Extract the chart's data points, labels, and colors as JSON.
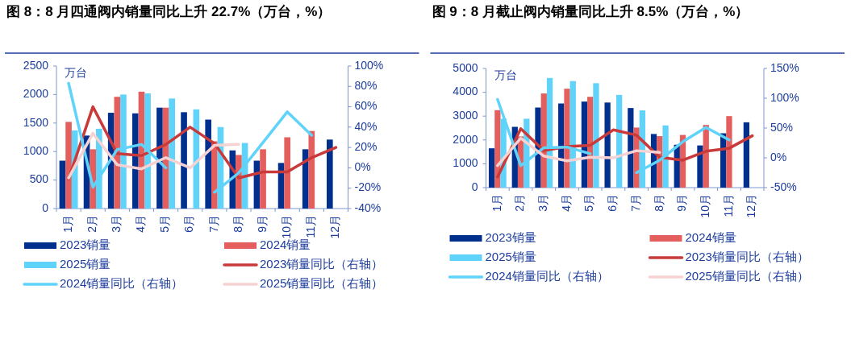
{
  "chart_data": [
    {
      "type": "bar",
      "title": "图 8：8 月四通阀内销量同比上升 22.7%（万台，%）",
      "ylabel": "万台",
      "categories": [
        "1月",
        "2月",
        "3月",
        "4月",
        "5月",
        "6月",
        "7月",
        "8月",
        "9月",
        "10月",
        "11月",
        "12月"
      ],
      "series": [
        {
          "name": "2023销量",
          "color": "#002f8e",
          "values": [
            840,
            1280,
            1680,
            1670,
            1770,
            1690,
            1560,
            1020,
            840,
            800,
            1040,
            1210
          ]
        },
        {
          "name": "2024销量",
          "color": "#e55e5e",
          "values": [
            1520,
            1040,
            1960,
            2050,
            1770,
            null,
            1180,
            940,
            1040,
            1250,
            1360,
            null
          ]
        },
        {
          "name": "2025销量",
          "color": "#5fd3fa",
          "values": [
            1370,
            1400,
            2000,
            2020,
            1930,
            1740,
            1430,
            1150,
            null,
            null,
            null,
            null
          ]
        },
        {
          "name": "2023销量同比（右轴）",
          "type": "line",
          "axis": "y2",
          "color": "#c93a3a",
          "values": [
            -11,
            60,
            14,
            12,
            23,
            40,
            24,
            -10,
            -4,
            -4,
            10,
            20
          ]
        },
        {
          "name": "2024销量同比（右轴）",
          "type": "line",
          "axis": "y2",
          "color": "#5fd3fa",
          "values": [
            83,
            -19,
            18,
            23,
            0,
            null,
            -24,
            -5,
            25,
            55,
            32,
            null
          ]
        },
        {
          "name": "2025销量同比（右轴）",
          "type": "line",
          "axis": "y2",
          "color": "#f6d2d2",
          "values": [
            -10,
            34,
            3,
            -1,
            10,
            0,
            22,
            23,
            null,
            null,
            null,
            null
          ]
        }
      ],
      "ylim": [
        0,
        2500
      ],
      "yticks": [
        0,
        500,
        1000,
        1500,
        2000,
        2500
      ],
      "y2lim": [
        -40,
        100
      ],
      "y2ticks": [
        {
          "value": -40,
          "label": "-40%"
        },
        {
          "value": -20,
          "label": "-20%"
        },
        {
          "value": 0,
          "label": "0%"
        },
        {
          "value": 20,
          "label": "20%"
        },
        {
          "value": 40,
          "label": "40%"
        },
        {
          "value": 60,
          "label": "60%"
        },
        {
          "value": 80,
          "label": "80%"
        },
        {
          "value": 100,
          "label": "100%"
        }
      ],
      "legend": "bottom",
      "marker": "none",
      "grid": false
    },
    {
      "type": "bar",
      "title": "图 9：8 月截止阀内销量同比上升 8.5%（万台，%）",
      "ylabel": "万台",
      "categories": [
        "1月",
        "2月",
        "3月",
        "4月",
        "5月",
        "6月",
        "7月",
        "8月",
        "9月",
        "10月",
        "11月",
        "12月"
      ],
      "series": [
        {
          "name": "2023销量",
          "color": "#002f8e",
          "values": [
            1650,
            2550,
            3360,
            3530,
            3610,
            3570,
            3340,
            2250,
            1800,
            1770,
            2280,
            2740
          ]
        },
        {
          "name": "2024销量",
          "color": "#e55e5e",
          "values": [
            3250,
            2150,
            3950,
            4150,
            3810,
            null,
            2520,
            2160,
            2210,
            2630,
            3000,
            null
          ]
        },
        {
          "name": "2025销量",
          "color": "#5fd3fa",
          "values": [
            2890,
            2890,
            4600,
            4470,
            4380,
            3890,
            3240,
            2610,
            null,
            null,
            null,
            null
          ]
        },
        {
          "name": "2023销量同比（右轴）",
          "type": "line",
          "axis": "y2",
          "color": "#c93a3a",
          "values": [
            -32,
            49,
            12,
            19,
            21,
            47,
            38,
            1,
            -4,
            11,
            16,
            37
          ]
        },
        {
          "name": "2024销量同比（右轴）",
          "type": "line",
          "axis": "y2",
          "color": "#5fd3fa",
          "values": [
            98,
            -13,
            17,
            18,
            7,
            null,
            -25,
            -4,
            27,
            51,
            30,
            null
          ]
        },
        {
          "name": "2025销量同比（右轴）",
          "type": "line",
          "axis": "y2",
          "color": "#f6d2d2",
          "values": [
            -13,
            33,
            3,
            -5,
            1,
            0,
            12,
            9,
            null,
            null,
            null,
            null
          ]
        }
      ],
      "ylim": [
        0,
        5000
      ],
      "yticks": [
        0,
        1000,
        2000,
        3000,
        4000,
        5000
      ],
      "y2lim": [
        -50,
        150
      ],
      "y2ticks": [
        {
          "value": -50,
          "label": "-50%"
        },
        {
          "value": 0,
          "label": "0%"
        },
        {
          "value": 50,
          "label": "50%"
        },
        {
          "value": 100,
          "label": "100%"
        },
        {
          "value": 150,
          "label": "150%"
        }
      ],
      "legend": "bottom",
      "marker": "none",
      "grid": false
    }
  ]
}
